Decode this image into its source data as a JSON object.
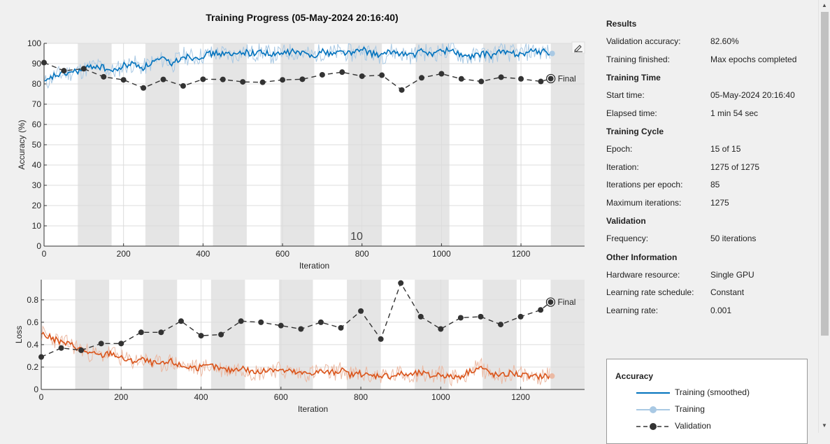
{
  "title": "Training Progress (05-May-2024 20:16:40)",
  "stray_label": "10",
  "results": {
    "sections": [
      {
        "heading": "Results",
        "rows": [
          {
            "key": "Validation accuracy:",
            "value": "82.60%"
          },
          {
            "key": "Training finished:",
            "value": "Max epochs completed"
          }
        ]
      },
      {
        "heading": "Training Time",
        "rows": [
          {
            "key": "Start time:",
            "value": "05-May-2024 20:16:40"
          },
          {
            "key": "Elapsed time:",
            "value": "1 min 54 sec"
          }
        ]
      },
      {
        "heading": "Training Cycle",
        "rows": [
          {
            "key": "Epoch:",
            "value": "15 of 15"
          },
          {
            "key": "Iteration:",
            "value": "1275 of 1275"
          },
          {
            "key": "Iterations per epoch:",
            "value": "85"
          },
          {
            "key": "Maximum iterations:",
            "value": "1275"
          }
        ]
      },
      {
        "heading": "Validation",
        "rows": [
          {
            "key": "Frequency:",
            "value": "50 iterations"
          }
        ]
      },
      {
        "heading": "Other Information",
        "rows": [
          {
            "key": "Hardware resource:",
            "value": "Single GPU"
          },
          {
            "key": "Learning rate schedule:",
            "value": "Constant"
          },
          {
            "key": "Learning rate:",
            "value": "0.001"
          }
        ]
      }
    ]
  },
  "legend": {
    "title": "Accuracy",
    "items": [
      "Training (smoothed)",
      "Training",
      "Validation"
    ]
  },
  "colors": {
    "acc_smoothed": "#0072bd",
    "acc_raw": "#a9c9e4",
    "loss_smoothed": "#d95319",
    "loss_raw": "#ebb9a3",
    "validation": "#333333",
    "epoch_band": "#e5e5e5"
  },
  "chart_data": [
    {
      "type": "line",
      "name": "accuracy",
      "xlabel": "Iteration",
      "ylabel": "Accuracy (%)",
      "xlim": [
        0,
        1360
      ],
      "ylim": [
        0,
        100
      ],
      "xticks": [
        0,
        200,
        400,
        600,
        800,
        1000,
        1200
      ],
      "yticks": [
        0,
        10,
        20,
        30,
        40,
        50,
        60,
        70,
        80,
        90,
        100
      ],
      "epoch_iterations": 85,
      "final_label": "Final",
      "validation": {
        "x": [
          0,
          50,
          100,
          150,
          200,
          250,
          300,
          350,
          400,
          450,
          500,
          550,
          600,
          650,
          700,
          750,
          800,
          850,
          900,
          950,
          1000,
          1050,
          1100,
          1150,
          1200,
          1250,
          1275
        ],
        "y": [
          90.5,
          86.5,
          87.5,
          83.5,
          82.0,
          78.0,
          82.2,
          79.0,
          82.3,
          82.2,
          81.0,
          80.8,
          82.0,
          82.3,
          84.5,
          85.8,
          83.8,
          84.3,
          77.0,
          83.0,
          85.0,
          82.5,
          81.2,
          83.3,
          82.5,
          81.2,
          82.6
        ]
      },
      "training_smoothed": {
        "x": [
          0,
          25,
          50,
          75,
          100,
          125,
          150,
          175,
          200,
          225,
          250,
          275,
          300,
          325,
          350,
          375,
          400,
          425,
          450,
          475,
          500,
          525,
          550,
          575,
          600,
          625,
          650,
          675,
          700,
          725,
          750,
          775,
          800,
          825,
          850,
          875,
          900,
          925,
          950,
          975,
          1000,
          1025,
          1050,
          1075,
          1100,
          1125,
          1150,
          1175,
          1200,
          1225,
          1250,
          1275
        ],
        "y": [
          80,
          84,
          85,
          86,
          87,
          89,
          88,
          86,
          89,
          90,
          88,
          91,
          92,
          90,
          94,
          93,
          94,
          95,
          95,
          94,
          96,
          95,
          96,
          94,
          95,
          96,
          95,
          94,
          96,
          95,
          96,
          95,
          97,
          95,
          94,
          96,
          95,
          94,
          96,
          95,
          96,
          97,
          94,
          93,
          95,
          94,
          96,
          95,
          95,
          96,
          96,
          95
        ]
      }
    },
    {
      "type": "line",
      "name": "loss",
      "xlabel": "Iteration",
      "ylabel": "Loss",
      "xlim": [
        0,
        1360
      ],
      "ylim": [
        0,
        0.98
      ],
      "xticks": [
        0,
        200,
        400,
        600,
        800,
        1000,
        1200
      ],
      "yticks": [
        0,
        0.2,
        0.4,
        0.6,
        0.8
      ],
      "epoch_iterations": 85,
      "final_label": "Final",
      "validation": {
        "x": [
          0,
          50,
          100,
          150,
          200,
          250,
          300,
          350,
          400,
          450,
          500,
          550,
          600,
          650,
          700,
          750,
          800,
          850,
          900,
          950,
          1000,
          1050,
          1100,
          1150,
          1200,
          1250,
          1275
        ],
        "y": [
          0.29,
          0.37,
          0.35,
          0.41,
          0.41,
          0.51,
          0.51,
          0.61,
          0.48,
          0.49,
          0.61,
          0.6,
          0.57,
          0.54,
          0.6,
          0.55,
          0.7,
          0.45,
          0.95,
          0.65,
          0.54,
          0.64,
          0.65,
          0.58,
          0.65,
          0.71,
          0.78
        ]
      },
      "training_smoothed": {
        "x": [
          0,
          25,
          50,
          75,
          100,
          125,
          150,
          175,
          200,
          225,
          250,
          275,
          300,
          325,
          350,
          375,
          400,
          425,
          450,
          475,
          500,
          525,
          550,
          575,
          600,
          625,
          650,
          675,
          700,
          725,
          750,
          775,
          800,
          825,
          850,
          875,
          900,
          925,
          950,
          975,
          1000,
          1025,
          1050,
          1075,
          1100,
          1125,
          1150,
          1175,
          1200,
          1225,
          1250,
          1275
        ],
        "y": [
          0.5,
          0.46,
          0.42,
          0.4,
          0.36,
          0.32,
          0.3,
          0.33,
          0.28,
          0.25,
          0.27,
          0.24,
          0.22,
          0.25,
          0.21,
          0.2,
          0.19,
          0.21,
          0.18,
          0.17,
          0.2,
          0.16,
          0.15,
          0.19,
          0.17,
          0.16,
          0.14,
          0.15,
          0.16,
          0.15,
          0.17,
          0.13,
          0.14,
          0.12,
          0.13,
          0.12,
          0.14,
          0.13,
          0.15,
          0.12,
          0.14,
          0.11,
          0.12,
          0.17,
          0.2,
          0.14,
          0.12,
          0.15,
          0.13,
          0.11,
          0.12,
          0.12
        ]
      }
    }
  ]
}
